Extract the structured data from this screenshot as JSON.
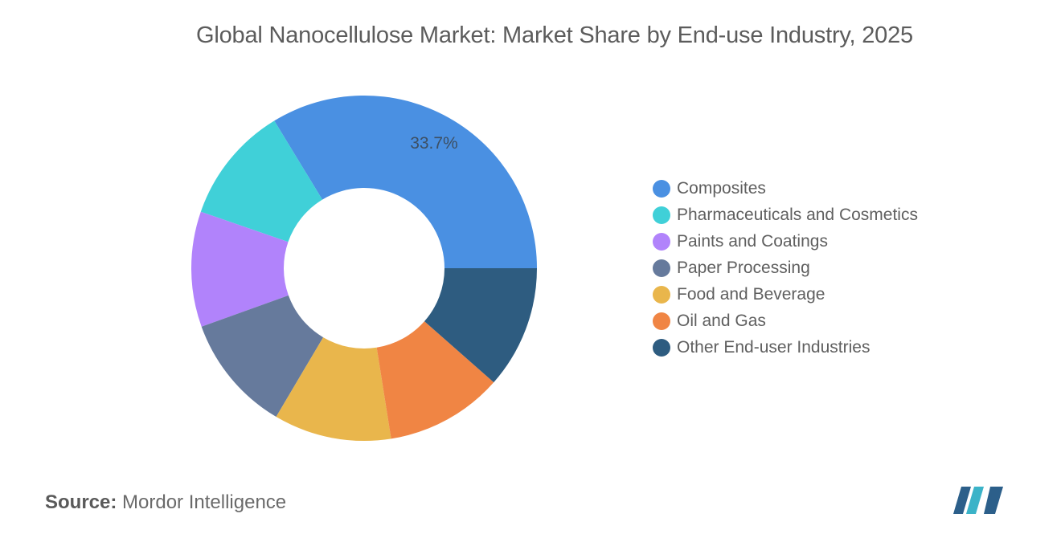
{
  "chart_data": {
    "type": "pie",
    "title": "Global Nanocellulose Market: Market Share by End-use Industry, 2025",
    "donut": true,
    "categories": [
      "Composites",
      "Pharmaceuticals and Cosmetics",
      "Paints and Coatings",
      "Paper Processing",
      "Food and Beverage",
      "Oil and Gas",
      "Other End-user Industries"
    ],
    "values": [
      33.7,
      11.0,
      10.8,
      11.0,
      11.0,
      11.0,
      11.5
    ],
    "colors": [
      "#4a90e2",
      "#40d0d8",
      "#b183fb",
      "#667a9c",
      "#e9b64c",
      "#f08544",
      "#2e5c80"
    ],
    "data_labels": [
      "33.7%",
      "",
      "",
      "",
      "",
      "",
      ""
    ],
    "legend_position": "right"
  },
  "source": {
    "label": "Source:",
    "text": "Mordor Intelligence"
  },
  "logo": {
    "icon": "mordor-intelligence-logo",
    "colors": [
      "#2c5f8a",
      "#3bb3c8"
    ]
  }
}
